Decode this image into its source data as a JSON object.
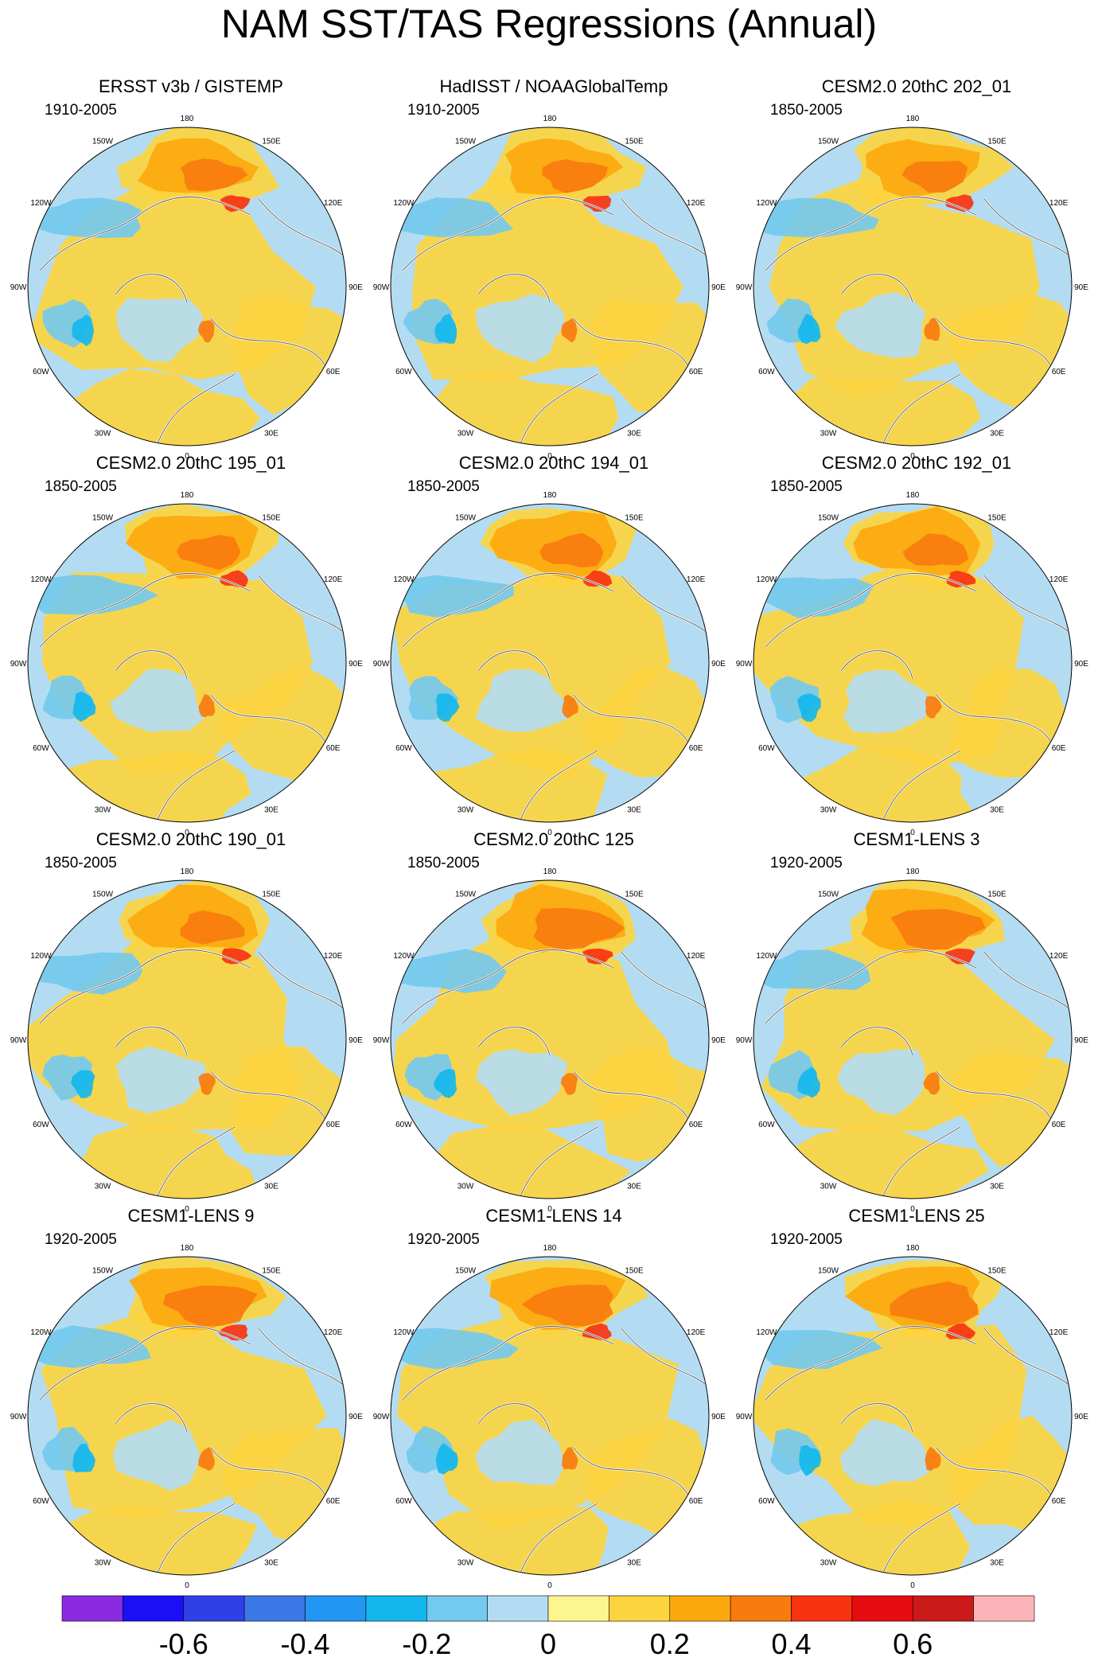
{
  "title": "NAM SST/TAS Regressions (Annual)",
  "longitude_labels": [
    "180",
    "150E",
    "120E",
    "90E",
    "60E",
    "30E",
    "0",
    "30W",
    "60W",
    "90W",
    "120W",
    "150W"
  ],
  "colorbar": {
    "colors": [
      "#8a2be2",
      "#1a10f5",
      "#3040e8",
      "#3a78e6",
      "#2196f3",
      "#13b7ee",
      "#74c9ee",
      "#b3dcf2",
      "#fdf58f",
      "#fcd440",
      "#fba90e",
      "#f97b0f",
      "#f83310",
      "#e60b10",
      "#cc1a1a",
      "#fbb4b8"
    ],
    "tick_labels": [
      "-0.6",
      "-0.4",
      "-0.2",
      "0",
      "0.2",
      "0.4",
      "0.6"
    ]
  },
  "chart_data": [
    {
      "type": "heatmap",
      "title": "ERSST v3b / GISTEMP",
      "period": "1910-2005"
    },
    {
      "type": "heatmap",
      "title": "HadISST / NOAAGlobalTemp",
      "period": "1910-2005"
    },
    {
      "type": "heatmap",
      "title": "CESM2.0 20thC 202_01",
      "period": "1850-2005"
    },
    {
      "type": "heatmap",
      "title": "CESM2.0 20thC 195_01",
      "period": "1850-2005"
    },
    {
      "type": "heatmap",
      "title": "CESM2.0 20thC 194_01",
      "period": "1850-2005"
    },
    {
      "type": "heatmap",
      "title": "CESM2.0 20thC 192_01",
      "period": "1850-2005"
    },
    {
      "type": "heatmap",
      "title": "CESM2.0 20thC 190_01",
      "period": "1850-2005"
    },
    {
      "type": "heatmap",
      "title": "CESM2.0 20thC 125",
      "period": "1850-2005"
    },
    {
      "type": "heatmap",
      "title": "CESM1-LENS 3",
      "period": "1920-2005"
    },
    {
      "type": "heatmap",
      "title": "CESM1-LENS 9",
      "period": "1920-2005"
    },
    {
      "type": "heatmap",
      "title": "CESM1-LENS 14",
      "period": "1920-2005"
    },
    {
      "type": "heatmap",
      "title": "CESM1-LENS 25",
      "period": "1920-2005"
    }
  ]
}
